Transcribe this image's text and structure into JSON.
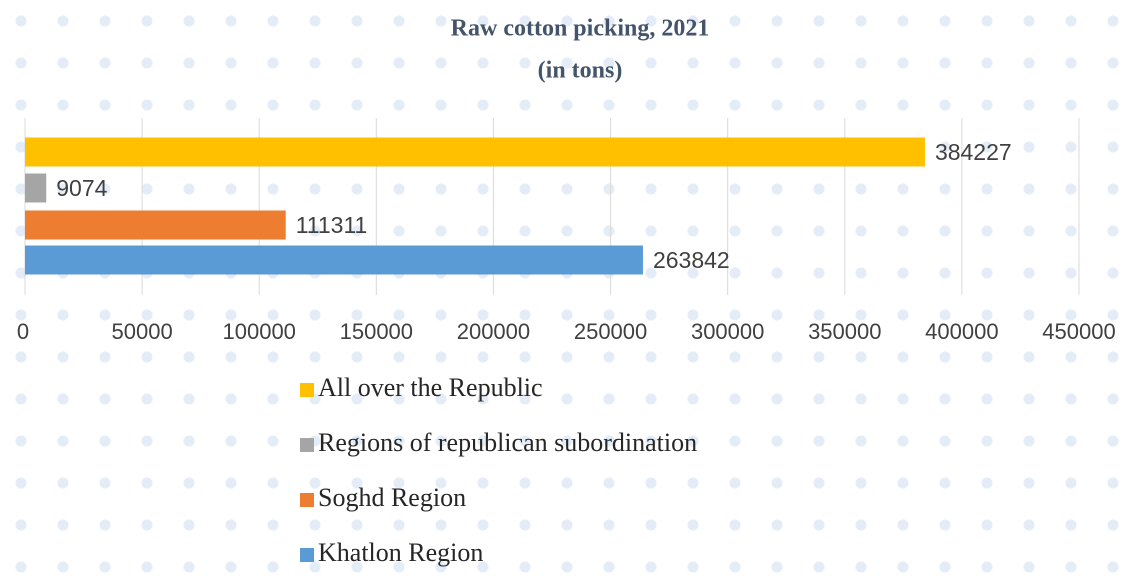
{
  "chart_data": {
    "type": "bar",
    "orientation": "horizontal",
    "title": "Raw cotton picking, 2021",
    "subtitle": "(in tons)",
    "series": [
      {
        "name": "All over the Republic",
        "color": "#ffc000",
        "values": [
          384227
        ]
      },
      {
        "name": "Regions of republican subordination",
        "color": "#a5a5a5",
        "values": [
          9074
        ]
      },
      {
        "name": "Soghd Region",
        "color": "#ed7d31",
        "values": [
          111311
        ]
      },
      {
        "name": "Khatlon Region",
        "color": "#5b9bd5",
        "values": [
          263842
        ]
      }
    ],
    "xlim": [
      0,
      450000
    ],
    "xticks": [
      0,
      50000,
      100000,
      150000,
      200000,
      250000,
      300000,
      350000,
      400000,
      450000
    ],
    "grid": true
  }
}
